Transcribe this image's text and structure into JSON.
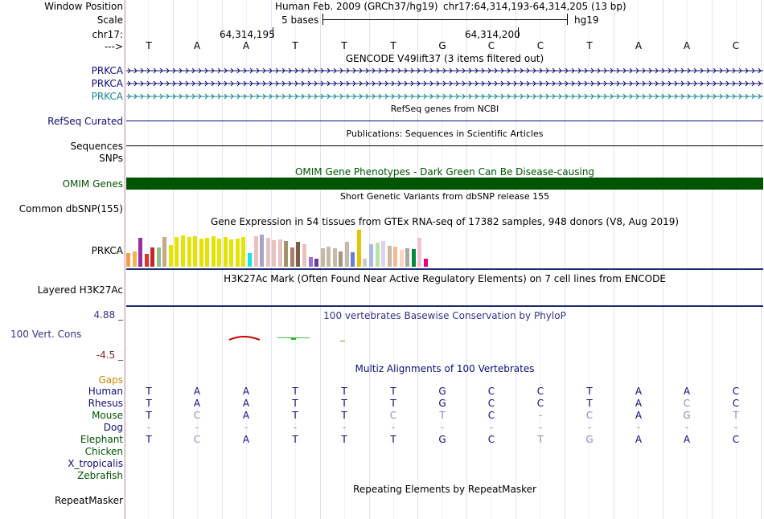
{
  "ruler": {
    "window_position_label": "Window Position",
    "scale_label": "Scale",
    "chrom_label": "chr17:",
    "strand_label": "--->",
    "assembly_text": "Human Feb. 2009 (GRCh37/hg19)",
    "position_text": "chr17:64,314,193-64,314,205 (13 bp)",
    "scale_text": "5 bases",
    "db_text": "hg19",
    "coord_1": "64,314,195",
    "coord_2": "64,314,200",
    "bases": [
      "T",
      "A",
      "A",
      "T",
      "T",
      "T",
      "G",
      "C",
      "C",
      "T",
      "A",
      "A",
      "C"
    ]
  },
  "tracks": {
    "gencode": {
      "title": "GENCODE V49lift37 (3 items filtered out)",
      "items": [
        "PRKCA",
        "PRKCA",
        "PRKCA"
      ],
      "colors": [
        "#0c0c78",
        "#0c0c78",
        "#12838f"
      ]
    },
    "refseq": {
      "title": "RefSeq genes from NCBI",
      "label": "RefSeq Curated",
      "color": "#0c0c78"
    },
    "publications": {
      "title": "Publications: Sequences in Scientific Articles",
      "label": "Sequences"
    },
    "snps_label": "SNPs",
    "omim": {
      "title": "OMIM Gene Phenotypes - Dark Green Can Be Disease-causing",
      "label": "OMIM Genes",
      "color": "#005500"
    },
    "dbsnp": {
      "title": "Short Genetic Variants from dbSNP release 155",
      "label": "Common dbSNP(155)"
    },
    "gtex": {
      "title": "Gene Expression in 54 tissues from GTEx RNA-seq of 17382 samples, 948 donors (V8, Aug 2019)",
      "label": "PRKCA"
    },
    "h3k27ac": {
      "title": "H3K27Ac Mark (Often Found Near Active Regulatory Elements) on 7 cell lines from ENCODE",
      "label": "Layered H3K27Ac"
    },
    "phylop": {
      "title": "100 vertebrates Basewise Conservation by PhyloP",
      "label": "100 Vert. Cons",
      "max_text": "4.88 _",
      "min_text": "-4.5 _",
      "color": "#333388"
    },
    "multiz": {
      "title": "Multiz Alignments of 100 Vertebrates",
      "gaps_label": "Gaps",
      "species": [
        {
          "name": "Human",
          "color": "#0c0c78",
          "seq": [
            "T",
            "A",
            "A",
            "T",
            "T",
            "T",
            "G",
            "C",
            "C",
            "T",
            "A",
            "A",
            "C"
          ]
        },
        {
          "name": "Rhesus",
          "color": "#0c0c78",
          "seq": [
            "T",
            "A",
            "A",
            "T",
            "T",
            "T",
            "G",
            "C",
            "C",
            "T",
            "A",
            "C",
            "C"
          ]
        },
        {
          "name": "Mouse",
          "color": "#005500",
          "seq": [
            "T",
            "C",
            "A",
            "T",
            "T",
            "C",
            "T",
            "C",
            "-",
            "C",
            "A",
            "G",
            "T"
          ]
        },
        {
          "name": "Dog",
          "color": "#0c0c78",
          "seq": [
            "-",
            "-",
            "-",
            "-",
            "-",
            "-",
            "-",
            "-",
            "-",
            "-",
            "-",
            "-",
            "-"
          ]
        },
        {
          "name": "Elephant",
          "color": "#005500",
          "seq": [
            "T",
            "C",
            "A",
            "T",
            "T",
            "T",
            "G",
            "C",
            "T",
            "G",
            "A",
            "A",
            "C"
          ]
        },
        {
          "name": "Chicken",
          "color": "#005500",
          "seq": []
        },
        {
          "name": "X_tropicalis",
          "color": "#0c0c78",
          "seq": []
        },
        {
          "name": "Zebrafish",
          "color": "#005500",
          "seq": []
        }
      ]
    },
    "repeatmasker": {
      "title": "Repeating Elements by RepeatMasker",
      "label": "RepeatMasker"
    }
  },
  "colors": {
    "gaps_label": "#cc8800",
    "phylop_max": "#333388",
    "phylop_min": "#882222",
    "gtex_bars": [
      "#f39c49",
      "#f6b04f",
      "#9b2fa0",
      "#e0312a",
      "#c82626",
      "#8fbf8f",
      "#c6a88a",
      "#e4e400",
      "#e4e400",
      "#e4e400",
      "#e4e400",
      "#e4e400",
      "#e4e400",
      "#e4e400",
      "#e4e400",
      "#e4e400",
      "#e4e400",
      "#e4e400",
      "#e4e400",
      "#e4e400",
      "#11e5e5",
      "#e8c2bf",
      "#a9a3c7",
      "#e8c2bf",
      "#e8c2bf",
      "#e8c2bf",
      "#a3926e",
      "#aa7f63",
      "#7a5e4b",
      "#e8c2bf",
      "#a26cd0",
      "#693d97",
      "#c8b9a5",
      "#c8b9a5",
      "#c8b9a5",
      "#a59584",
      "#c8b9a5",
      "#6d7dd3",
      "#e6c200",
      "#cccccc",
      "#aab9e7",
      "#b9e2aa",
      "#ddd2e8",
      "#c8b9a5",
      "#f5b98f",
      "#fdd5c1",
      "#aaa9a6",
      "#008b3e",
      "#f4c1d5",
      "#e4007c"
    ]
  },
  "gtex_heights": [
    0.36,
    0.4,
    0.76,
    0.33,
    0.49,
    0.51,
    0.78,
    0.57,
    0.77,
    0.81,
    0.77,
    0.8,
    0.72,
    0.76,
    0.79,
    0.72,
    0.78,
    0.7,
    0.73,
    0.77,
    0.36,
    0.79,
    0.83,
    0.75,
    0.69,
    0.7,
    0.66,
    0.5,
    0.64,
    0.58,
    0.26,
    0.21,
    0.47,
    0.53,
    0.47,
    0.4,
    0.64,
    0.38,
    0.96,
    0.2,
    0.59,
    0.62,
    0.66,
    0.55,
    0.52,
    0.44,
    0.47,
    0.46,
    0.74,
    0.21
  ]
}
